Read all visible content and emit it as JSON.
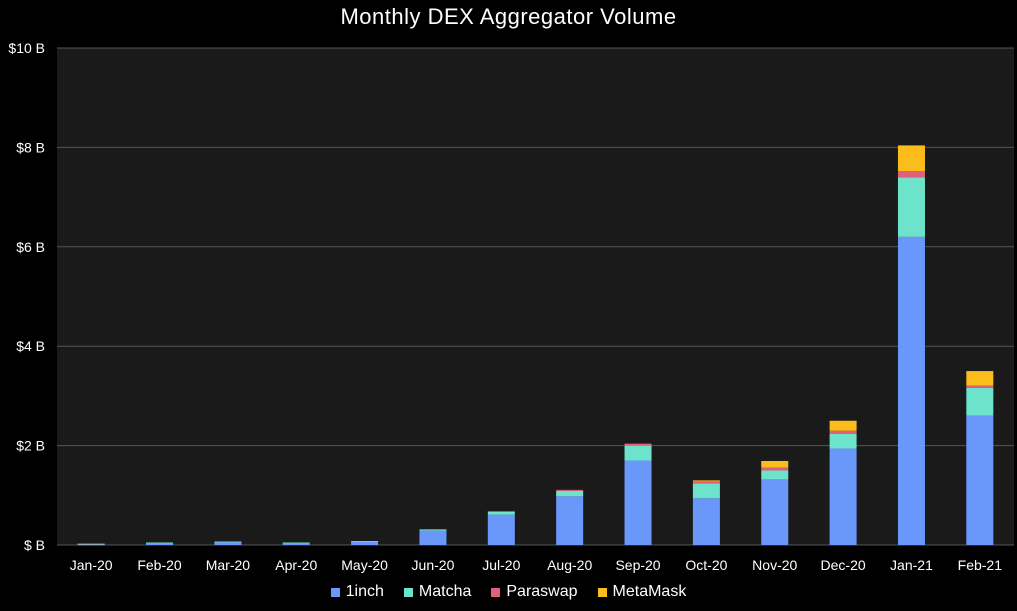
{
  "colors": {
    "background": "#000000",
    "plot_background": "#1a1a1a",
    "grid": "#555555",
    "1inch": "#6a98fa",
    "matcha": "#6ee3cb",
    "paraswap": "#e45f7a",
    "metamask": "#fbbd1c"
  },
  "chart_data": {
    "type": "bar",
    "stacked": true,
    "title": "Monthly DEX Aggregator Volume",
    "xlabel": "",
    "ylabel": "",
    "ylim": [
      0,
      10
    ],
    "yticks": [
      "$ B",
      "$2 B",
      "$4 B",
      "$6 B",
      "$8 B",
      "$10 B"
    ],
    "ytick_values": [
      0,
      2,
      4,
      6,
      8,
      10
    ],
    "grid": true,
    "legend_position": "bottom",
    "categories": [
      "Jan-20",
      "Feb-20",
      "Mar-20",
      "Apr-20",
      "May-20",
      "Jun-20",
      "Jul-20",
      "Aug-20",
      "Sep-20",
      "Oct-20",
      "Nov-20",
      "Dec-20",
      "Jan-21",
      "Feb-21"
    ],
    "series": [
      {
        "name": "1inch",
        "values": [
          0.01,
          0.04,
          0.06,
          0.04,
          0.07,
          0.29,
          0.61,
          0.98,
          1.7,
          0.94,
          1.32,
          1.94,
          6.2,
          2.6
        ]
      },
      {
        "name": "Matcha",
        "values": [
          0.01,
          0.01,
          0.01,
          0.01,
          0.01,
          0.02,
          0.06,
          0.11,
          0.3,
          0.3,
          0.18,
          0.3,
          1.2,
          0.56
        ]
      },
      {
        "name": "Paraswap",
        "values": [
          0.01,
          0.0,
          0.0,
          0.0,
          0.0,
          0.01,
          0.01,
          0.02,
          0.04,
          0.05,
          0.06,
          0.06,
          0.12,
          0.05
        ]
      },
      {
        "name": "MetaMask",
        "values": [
          0.0,
          0.0,
          0.0,
          0.0,
          0.0,
          0.0,
          0.0,
          0.0,
          0.0,
          0.01,
          0.13,
          0.2,
          0.52,
          0.29
        ]
      }
    ]
  }
}
